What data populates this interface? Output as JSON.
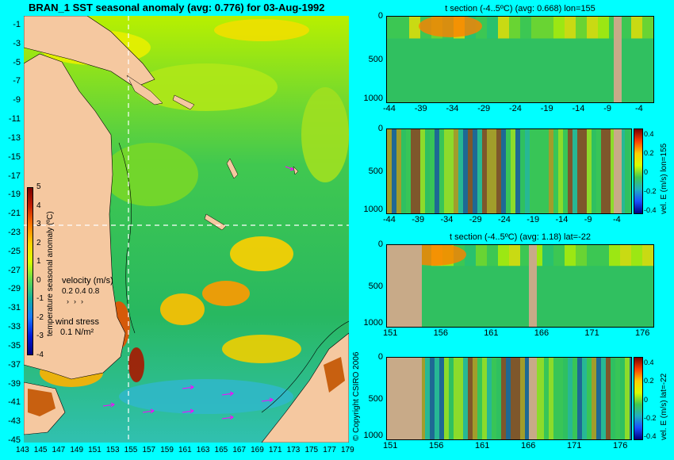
{
  "main_title": "BRAN_1 SST seasonal anomaly (avg: 0.776) for 03-Aug-1992",
  "map": {
    "lat_ticks": [
      "-1",
      "-3",
      "-5",
      "-7",
      "-9",
      "-11",
      "-13",
      "-15",
      "-17",
      "-19",
      "-21",
      "-23",
      "-25",
      "-27",
      "-29",
      "-31",
      "-33",
      "-35",
      "-37",
      "-39",
      "-41",
      "-43",
      "-45"
    ],
    "lon_ticks": [
      "143",
      "145",
      "147",
      "149",
      "151",
      "153",
      "155",
      "157",
      "159",
      "161",
      "163",
      "165",
      "167",
      "169",
      "171",
      "173",
      "175",
      "177",
      "179"
    ],
    "colorbar": {
      "label": "temperature seasonal anomaly (ºC)",
      "ticks": [
        "5",
        "4",
        "3",
        "2",
        "1",
        "0",
        "-1",
        "-2",
        "-3",
        "-4"
      ],
      "colors": [
        "#7a0000",
        "#c81e00",
        "#ff7800",
        "#ffd200",
        "#d8ff00",
        "#60d850",
        "#10b0a0",
        "#1878ff",
        "#0018d8",
        "#000080"
      ]
    },
    "velocity_legend": {
      "title": "velocity (m/s)",
      "values": "0.2 0.4 0.8"
    },
    "wind_legend": {
      "title": "wind stress",
      "value": "0.1 N/m²"
    },
    "copyright": "© Copyright CSIRO 2006",
    "land_color": "#f5c8a0"
  },
  "panels": [
    {
      "title": "t section (-4..5ºC) (avg: 0.668) lon=155",
      "y_ticks": [
        "0",
        "500",
        "1000"
      ],
      "x_ticks": [
        "-44",
        "-39",
        "-34",
        "-29",
        "-24",
        "-19",
        "-14",
        "-9",
        "-4"
      ]
    },
    {
      "title": "",
      "y_ticks": [
        "0",
        "500",
        "1000"
      ],
      "x_ticks": [
        "-44",
        "-39",
        "-34",
        "-29",
        "-24",
        "-19",
        "-14",
        "-9",
        "-4"
      ],
      "colorbar_label": "vel. E (m/s) lon=155",
      "colorbar_ticks": [
        "0.4",
        "0.2",
        "0",
        "-0.2",
        "-0.4"
      ]
    },
    {
      "title": "t section (-4..5ºC) (avg: 1.18) lat=-22",
      "y_ticks": [
        "0",
        "500",
        "1000"
      ],
      "x_ticks": [
        "151",
        "156",
        "161",
        "166",
        "171",
        "176"
      ]
    },
    {
      "title": "",
      "y_ticks": [
        "0",
        "500",
        "1000"
      ],
      "x_ticks": [
        "151",
        "156",
        "161",
        "166",
        "171",
        "176"
      ],
      "colorbar_label": "vel. E (m/s) lat=-22",
      "colorbar_ticks": [
        "0.4",
        "0.2",
        "0",
        "-0.2",
        "-0.4"
      ]
    }
  ]
}
